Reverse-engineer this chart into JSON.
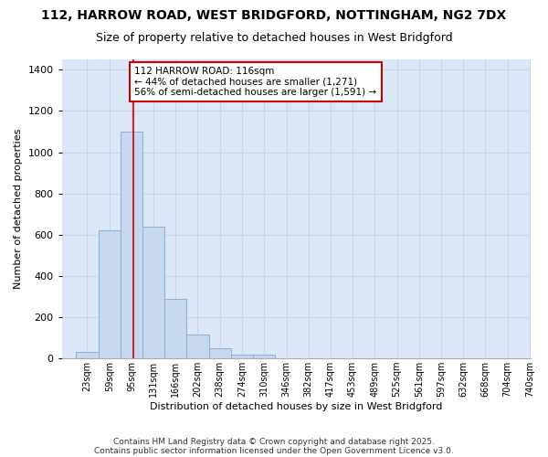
{
  "title_line1": "112, HARROW ROAD, WEST BRIDGFORD, NOTTINGHAM, NG2 7DX",
  "title_line2": "Size of property relative to detached houses in West Bridgford",
  "xlabel": "Distribution of detached houses by size in West Bridgford",
  "ylabel": "Number of detached properties",
  "categories": [
    "23sqm",
    "59sqm",
    "95sqm",
    "131sqm",
    "166sqm",
    "202sqm",
    "238sqm",
    "274sqm",
    "310sqm",
    "346sqm",
    "382sqm",
    "417sqm",
    "453sqm",
    "489sqm",
    "525sqm",
    "561sqm",
    "597sqm",
    "632sqm",
    "668sqm",
    "704sqm",
    "740sqm"
  ],
  "values": [
    30,
    620,
    1100,
    640,
    290,
    115,
    50,
    20,
    20,
    0,
    0,
    0,
    0,
    0,
    0,
    0,
    0,
    0,
    0,
    0,
    0
  ],
  "bar_color": "#c5d8f0",
  "bar_edge_color": "#8ab0d8",
  "grid_color": "#c8d4e8",
  "plot_bg_color": "#dce8f8",
  "figure_bg_color": "#ffffff",
  "vline_x": 116,
  "vline_color": "#cc0000",
  "annotation_text": "112 HARROW ROAD: 116sqm\n← 44% of detached houses are smaller (1,271)\n56% of semi-detached houses are larger (1,591) →",
  "annotation_box_facecolor": "#ffffff",
  "annotation_box_edgecolor": "#cc0000",
  "ylim": [
    0,
    1450
  ],
  "bin_starts": [
    23,
    59,
    95,
    131,
    166,
    202,
    238,
    274,
    310,
    346,
    382,
    417,
    453,
    489,
    525,
    561,
    597,
    632,
    668,
    704,
    740
  ],
  "footnote1": "Contains HM Land Registry data © Crown copyright and database right 2025.",
  "footnote2": "Contains public sector information licensed under the Open Government Licence v3.0."
}
